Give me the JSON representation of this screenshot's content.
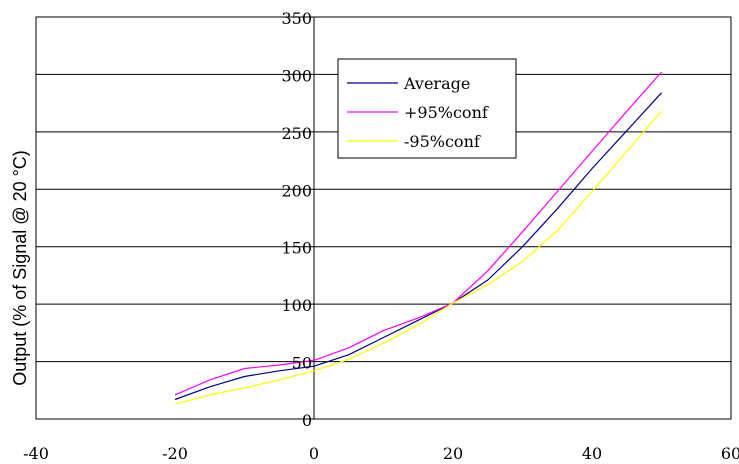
{
  "chart_data": {
    "type": "line",
    "title": "",
    "xlabel": "",
    "ylabel": "Output (% of Signal @ 20 °C)",
    "xlim": [
      -40,
      60
    ],
    "ylim": [
      0,
      350
    ],
    "x_ticks": [
      -40,
      -20,
      0,
      20,
      40,
      60
    ],
    "y_ticks": [
      0,
      50,
      100,
      150,
      200,
      250,
      300,
      350
    ],
    "x_tick_labels": [
      "-40",
      "-20",
      "0",
      "20",
      "40",
      "60"
    ],
    "y_tick_labels": [
      "0",
      "50",
      "100",
      "150",
      "200",
      "250",
      "300",
      "350"
    ],
    "grid": "horizontal",
    "legend_position": "top-center",
    "series": [
      {
        "name": "Average",
        "color": "#000080",
        "x": [
          -20,
          -15,
          -10,
          -5,
          0,
          5,
          10,
          15,
          20,
          25,
          30,
          35,
          40,
          45,
          50
        ],
        "y": [
          17,
          28,
          37,
          42,
          46,
          56,
          71,
          86,
          101,
          121,
          150,
          183,
          218,
          251,
          284
        ]
      },
      {
        "name": "+95%conf",
        "color": "#ff00ff",
        "x": [
          -20,
          -15,
          -10,
          -5,
          0,
          5,
          10,
          15,
          20,
          25,
          30,
          35,
          40,
          45,
          50
        ],
        "y": [
          21,
          34,
          44,
          47,
          51,
          62,
          77,
          88,
          101,
          129,
          163,
          198,
          233,
          268,
          302
        ]
      },
      {
        "name": "-95%conf",
        "color": "#ffff00",
        "x": [
          -20,
          -15,
          -10,
          -5,
          0,
          5,
          10,
          15,
          20,
          25,
          30,
          35,
          40,
          45,
          50
        ],
        "y": [
          13,
          21,
          27,
          34,
          42,
          52,
          66,
          82,
          101,
          117,
          137,
          164,
          198,
          233,
          268
        ]
      }
    ]
  }
}
